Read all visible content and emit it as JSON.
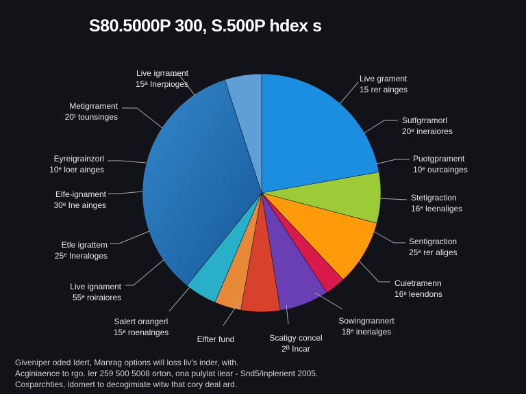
{
  "chart_data": {
    "type": "pie",
    "title": "S80.5000P 300, S.500P hdex s",
    "grid": false,
    "legend": "none",
    "slices": [
      {
        "label": "Live grament",
        "sub": "15 rer ainges",
        "value": 22.2,
        "color": "#1b8ee0"
      },
      {
        "label": "Stetigraction",
        "sub": "16ᵉ leenaliges",
        "value": 6.9,
        "color": "#9dcb37"
      },
      {
        "label": "Sentigraction",
        "sub": "25ᵉ rer aliges",
        "value": 8.9,
        "color": "#ff9a0a"
      },
      {
        "label": "Cuietramenn",
        "sub": "16ᵉ leendons",
        "value": 2.8,
        "color": "#d71a4a"
      },
      {
        "label": "Sowingrrannert",
        "sub": "18ᵉ inerialges",
        "value": 6.7,
        "color": "#6a3fb3"
      },
      {
        "label": "Scatigy concel",
        "sub": "2ᴮ Incar",
        "value": 5.3,
        "color": "#d8412c"
      },
      {
        "label": "Elfter fund",
        "sub": "",
        "value": 3.6,
        "color": "#e8893a"
      },
      {
        "label": "Salert orangerl",
        "sub": "15ᵉ roenalnges",
        "value": 4.4,
        "color": "#2aafc8"
      },
      {
        "label": "Elfe-ignament",
        "sub": "30ᵉ Ine ainges",
        "value": 34.2,
        "color": "#2a73b8"
      },
      {
        "label": "Live igrrament",
        "sub": "15ᵃ Inerpioges",
        "value": 5.0,
        "color": "#5e9fd8"
      }
    ],
    "extra_labels": [
      {
        "label": "Metigrrament",
        "sub": "20ᵗ tounsinges"
      },
      {
        "label": "Eyreigrainzorl",
        "sub": "10ᵉ loer ainges"
      },
      {
        "label": "Etle igrattem",
        "sub": "25ᵉ Ineraloges"
      },
      {
        "label": "Live ignament",
        "sub": "55ᵉ roiraiores"
      },
      {
        "label": "Puotgprament",
        "sub": "10ᵉ ourcainges"
      },
      {
        "label": "Sutfgrramorl",
        "sub": "20ᵉ ineraiores"
      }
    ]
  },
  "footnote": [
    "Giveniper oded Idert, Manrag options will loss liv's inder, with.",
    "Acginiaence to rgo. Ier 259 500 5008 orton, ona pulylat ilear - Snd5/inplerient 2005.",
    "Cosparchties, ldomert to decogimiate witw that cory deal ard."
  ],
  "background": "#111318"
}
